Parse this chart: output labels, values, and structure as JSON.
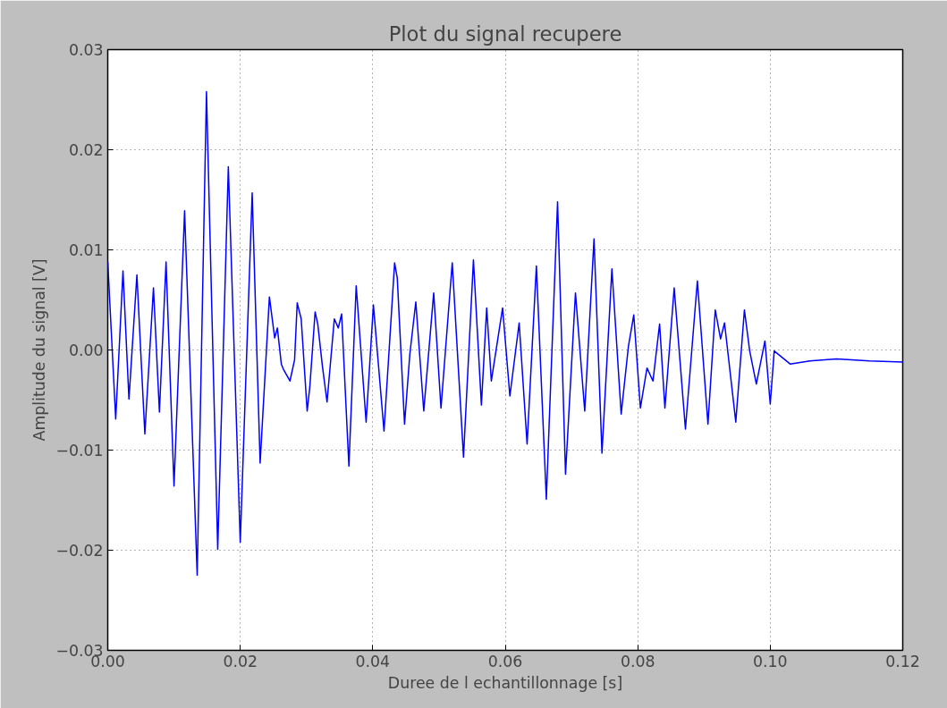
{
  "chart_data": {
    "type": "line",
    "title": "Plot du signal recupere",
    "xlabel": "Duree de l echantillonnage [s]",
    "ylabel": "Amplitude du signal [V]",
    "xlim": [
      0,
      0.12
    ],
    "ylim": [
      -0.03,
      0.03
    ],
    "xticks": [
      {
        "value": 0,
        "label": "0.00"
      },
      {
        "value": 0.02,
        "label": "0.02"
      },
      {
        "value": 0.04,
        "label": "0.04"
      },
      {
        "value": 0.06,
        "label": "0.06"
      },
      {
        "value": 0.08,
        "label": "0.08"
      },
      {
        "value": 0.1,
        "label": "0.10"
      },
      {
        "value": 0.12,
        "label": "0.12"
      }
    ],
    "yticks": [
      {
        "value": -0.03,
        "label": "−0.03"
      },
      {
        "value": -0.02,
        "label": "−0.02"
      },
      {
        "value": -0.01,
        "label": "−0.01"
      },
      {
        "value": 0,
        "label": "0.00"
      },
      {
        "value": 0.01,
        "label": "0.01"
      },
      {
        "value": 0.02,
        "label": "0.02"
      },
      {
        "value": 0.03,
        "label": "0.03"
      }
    ],
    "grid": true,
    "marker": "none",
    "line_style": "solid",
    "series": [
      {
        "color": "#0000ff",
        "x": [
          0,
          0.0012,
          0.0023,
          0.0032,
          0.0044,
          0.0056,
          0.0069,
          0.0078,
          0.0088,
          0.01,
          0.0116,
          0.0135,
          0.0149,
          0.0166,
          0.0182,
          0.02,
          0.0218,
          0.023,
          0.0244,
          0.0252,
          0.0256,
          0.0262,
          0.0265,
          0.0275,
          0.0282,
          0.0286,
          0.0292,
          0.0301,
          0.0305,
          0.0313,
          0.0317,
          0.0324,
          0.0331,
          0.0342,
          0.0348,
          0.0353,
          0.0364,
          0.0375,
          0.039,
          0.0401,
          0.0417,
          0.0433,
          0.0437,
          0.0448,
          0.0456,
          0.0465,
          0.0477,
          0.0492,
          0.0503,
          0.052,
          0.0537,
          0.0552,
          0.0564,
          0.0572,
          0.0579,
          0.0596,
          0.0607,
          0.0621,
          0.0633,
          0.0647,
          0.0662,
          0.0679,
          0.0691,
          0.0706,
          0.072,
          0.0734,
          0.0746,
          0.0761,
          0.0775,
          0.0786,
          0.0794,
          0.0804,
          0.0814,
          0.0823,
          0.0833,
          0.0841,
          0.0855,
          0.0872,
          0.089,
          0.0906,
          0.0917,
          0.0925,
          0.0931,
          0.0948,
          0.0961,
          0.0969,
          0.0979,
          0.0992,
          0.1,
          0.1006,
          0.103,
          0.106,
          0.11,
          0.115,
          0.12
        ],
        "values": [
          0.0088,
          -0.0069,
          0.0079,
          -0.0049,
          0.0075,
          -0.0084,
          0.0062,
          -0.0062,
          0.0088,
          -0.0136,
          0.0139,
          -0.0225,
          0.0258,
          -0.0199,
          0.0183,
          -0.0192,
          0.0157,
          -0.0113,
          0.0053,
          0.0012,
          0.0022,
          -0.0014,
          -0.0019,
          -0.0031,
          -0.001,
          0.0047,
          0.0031,
          -0.0061,
          -0.0037,
          0.0038,
          0.0026,
          -0.0016,
          -0.0052,
          0.0031,
          0.0022,
          0.0036,
          -0.0116,
          0.0064,
          -0.0072,
          0.0045,
          -0.0081,
          0.0087,
          0.0072,
          -0.0074,
          -0.0004,
          0.0048,
          -0.0061,
          0.0057,
          -0.0058,
          0.0087,
          -0.0107,
          0.009,
          -0.0055,
          0.0042,
          -0.0031,
          0.0042,
          -0.0046,
          0.0027,
          -0.0094,
          0.0084,
          -0.0149,
          0.0148,
          -0.0124,
          0.0057,
          -0.0061,
          0.0111,
          -0.0103,
          0.0081,
          -0.0064,
          0.0004,
          0.0035,
          -0.0058,
          -0.0018,
          -0.0031,
          0.0026,
          -0.0058,
          0.0062,
          -0.0079,
          0.0069,
          -0.0074,
          0.004,
          0.0011,
          0.0027,
          -0.0072,
          0.004,
          -0.0001,
          -0.0034,
          0.0009,
          -0.0054,
          -0.0001,
          -0.0014,
          -0.0011,
          -0.0009,
          -0.0011,
          -0.0012
        ]
      }
    ]
  }
}
